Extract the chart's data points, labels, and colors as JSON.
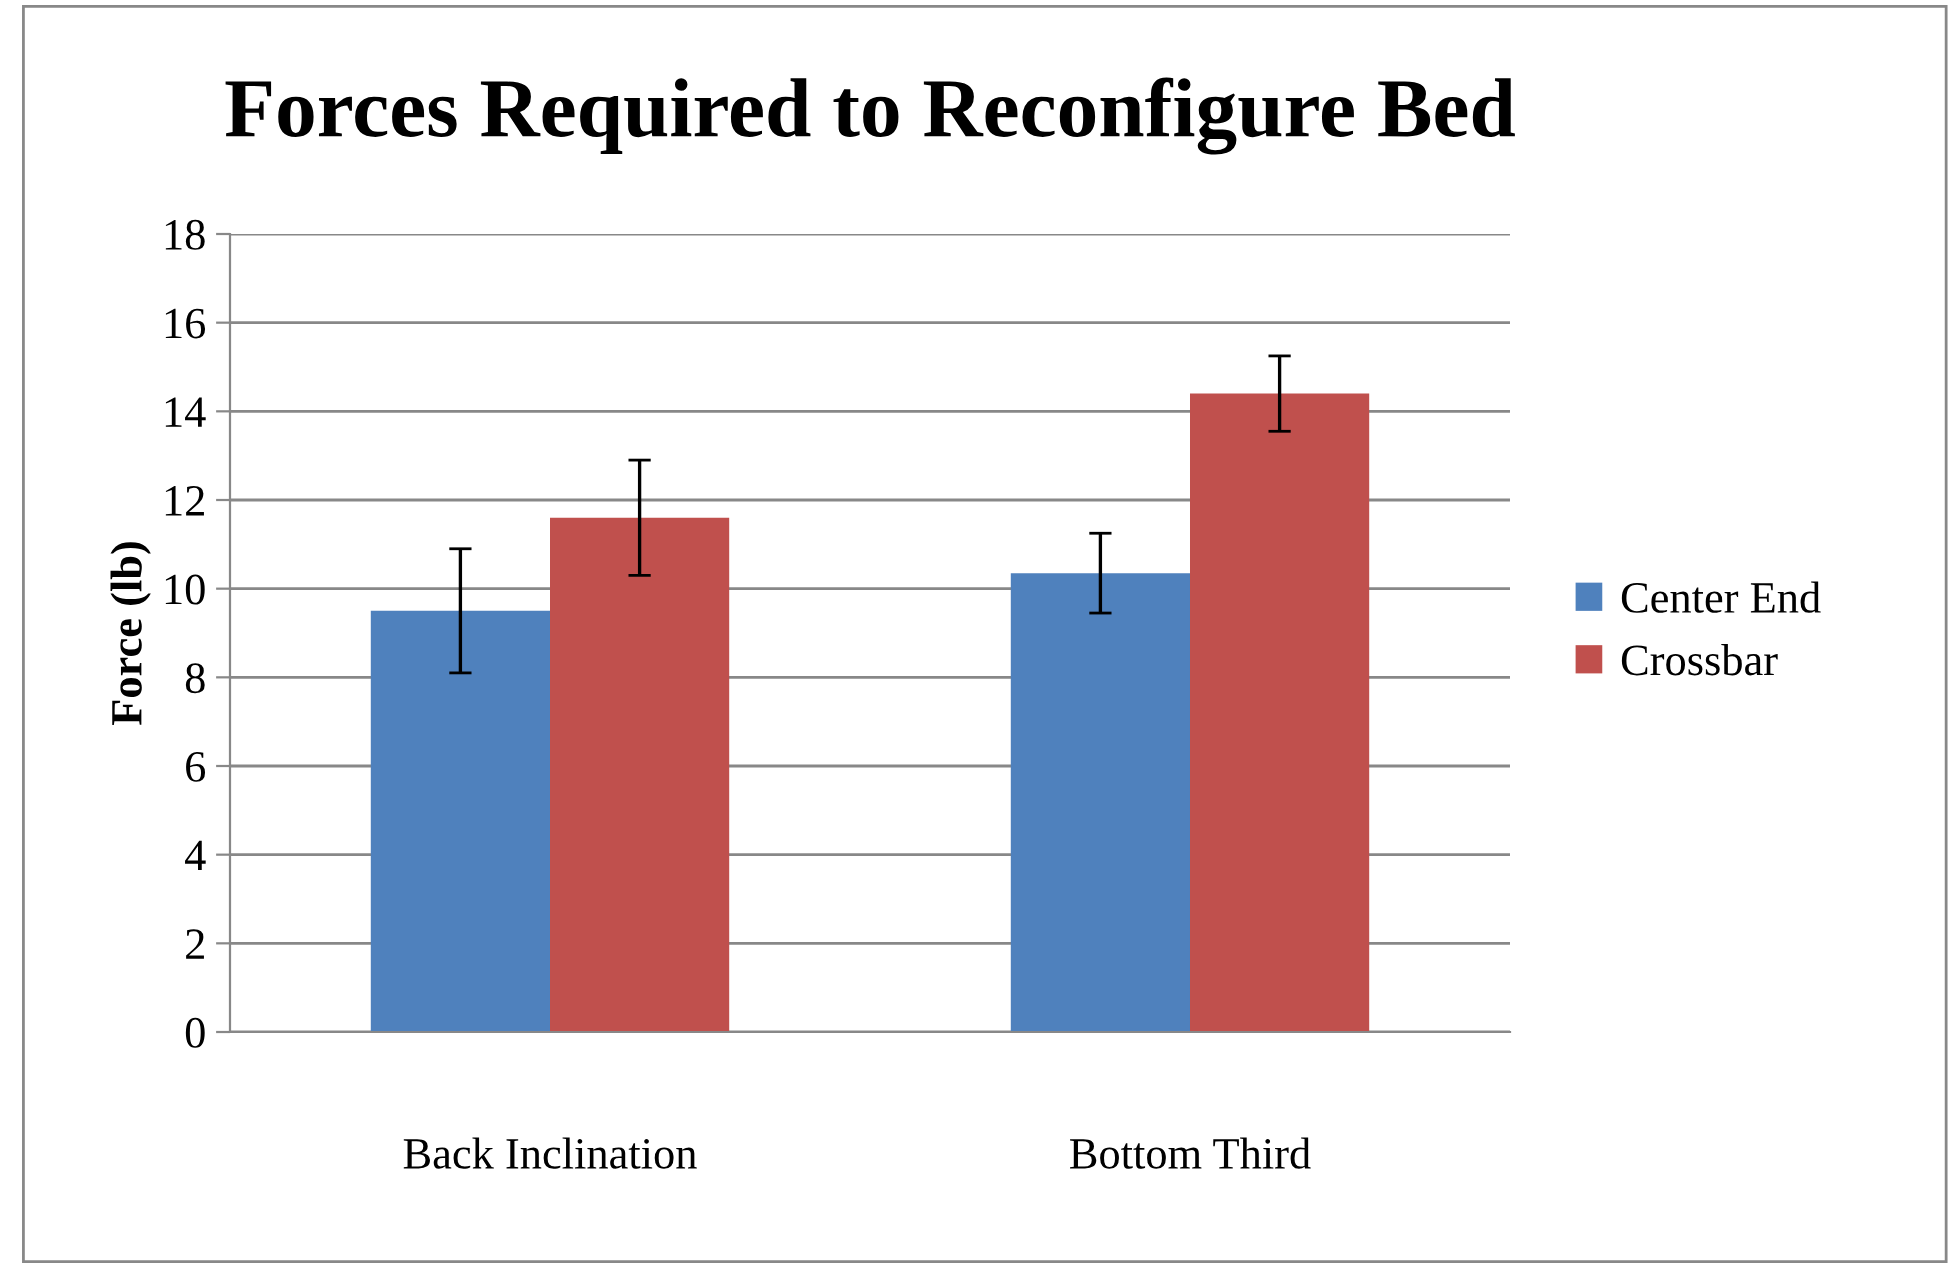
{
  "chart_data": {
    "type": "bar",
    "title": "Forces Required to Reconfigure Bed",
    "ylabel": "Force (lb)",
    "categories": [
      "Back Inclination",
      "Bottom Third"
    ],
    "series": [
      {
        "name": "Center End",
        "color": "#4f81bd",
        "values": [
          9.5,
          10.35
        ],
        "errors": [
          1.4,
          0.9
        ]
      },
      {
        "name": "Crossbar",
        "color": "#c0504d",
        "values": [
          11.6,
          14.4
        ],
        "errors": [
          1.3,
          0.85
        ]
      }
    ],
    "ylim": [
      0,
      18
    ],
    "yticks": [
      0,
      2,
      4,
      6,
      8,
      10,
      12,
      14,
      16,
      18
    ],
    "grid": "y",
    "legend": "right"
  }
}
